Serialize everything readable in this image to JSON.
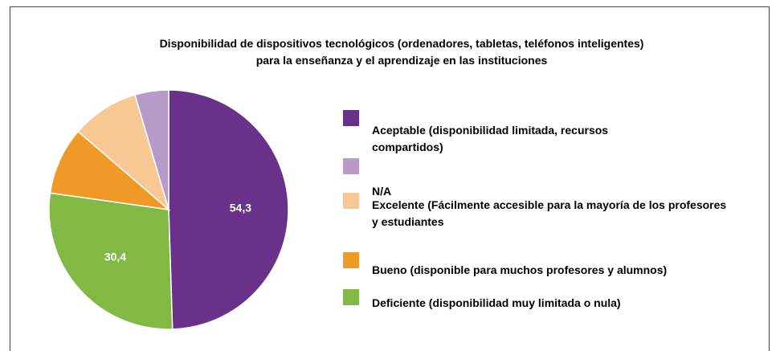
{
  "chart_data": {
    "type": "pie",
    "title": "Disponibilidad de dispositivos tecnológicos (ordenadores, tabletas, teléfonos inteligentes)\npara la enseñanza y el aprendizaje en las instituciones",
    "categories": [
      "Aceptable (disponibilidad limitada, recursos compartidos)",
      "N/A",
      "Excelente (Fácilmente accesible para la mayoría de los profesores\ny estudiantes",
      "Bueno (disponible para muchos profesores y alumnos)",
      "Deficiente (disponibilidad muy limitada o nula)"
    ],
    "values": [
      54.3,
      5,
      10,
      10,
      30.4
    ],
    "value_labels": [
      "54,3",
      null,
      null,
      null,
      "30,4"
    ],
    "colors": [
      "#6a318a",
      "#b89ac8",
      "#f7c794",
      "#ef9a27",
      "#82b944"
    ],
    "legend": "right"
  }
}
